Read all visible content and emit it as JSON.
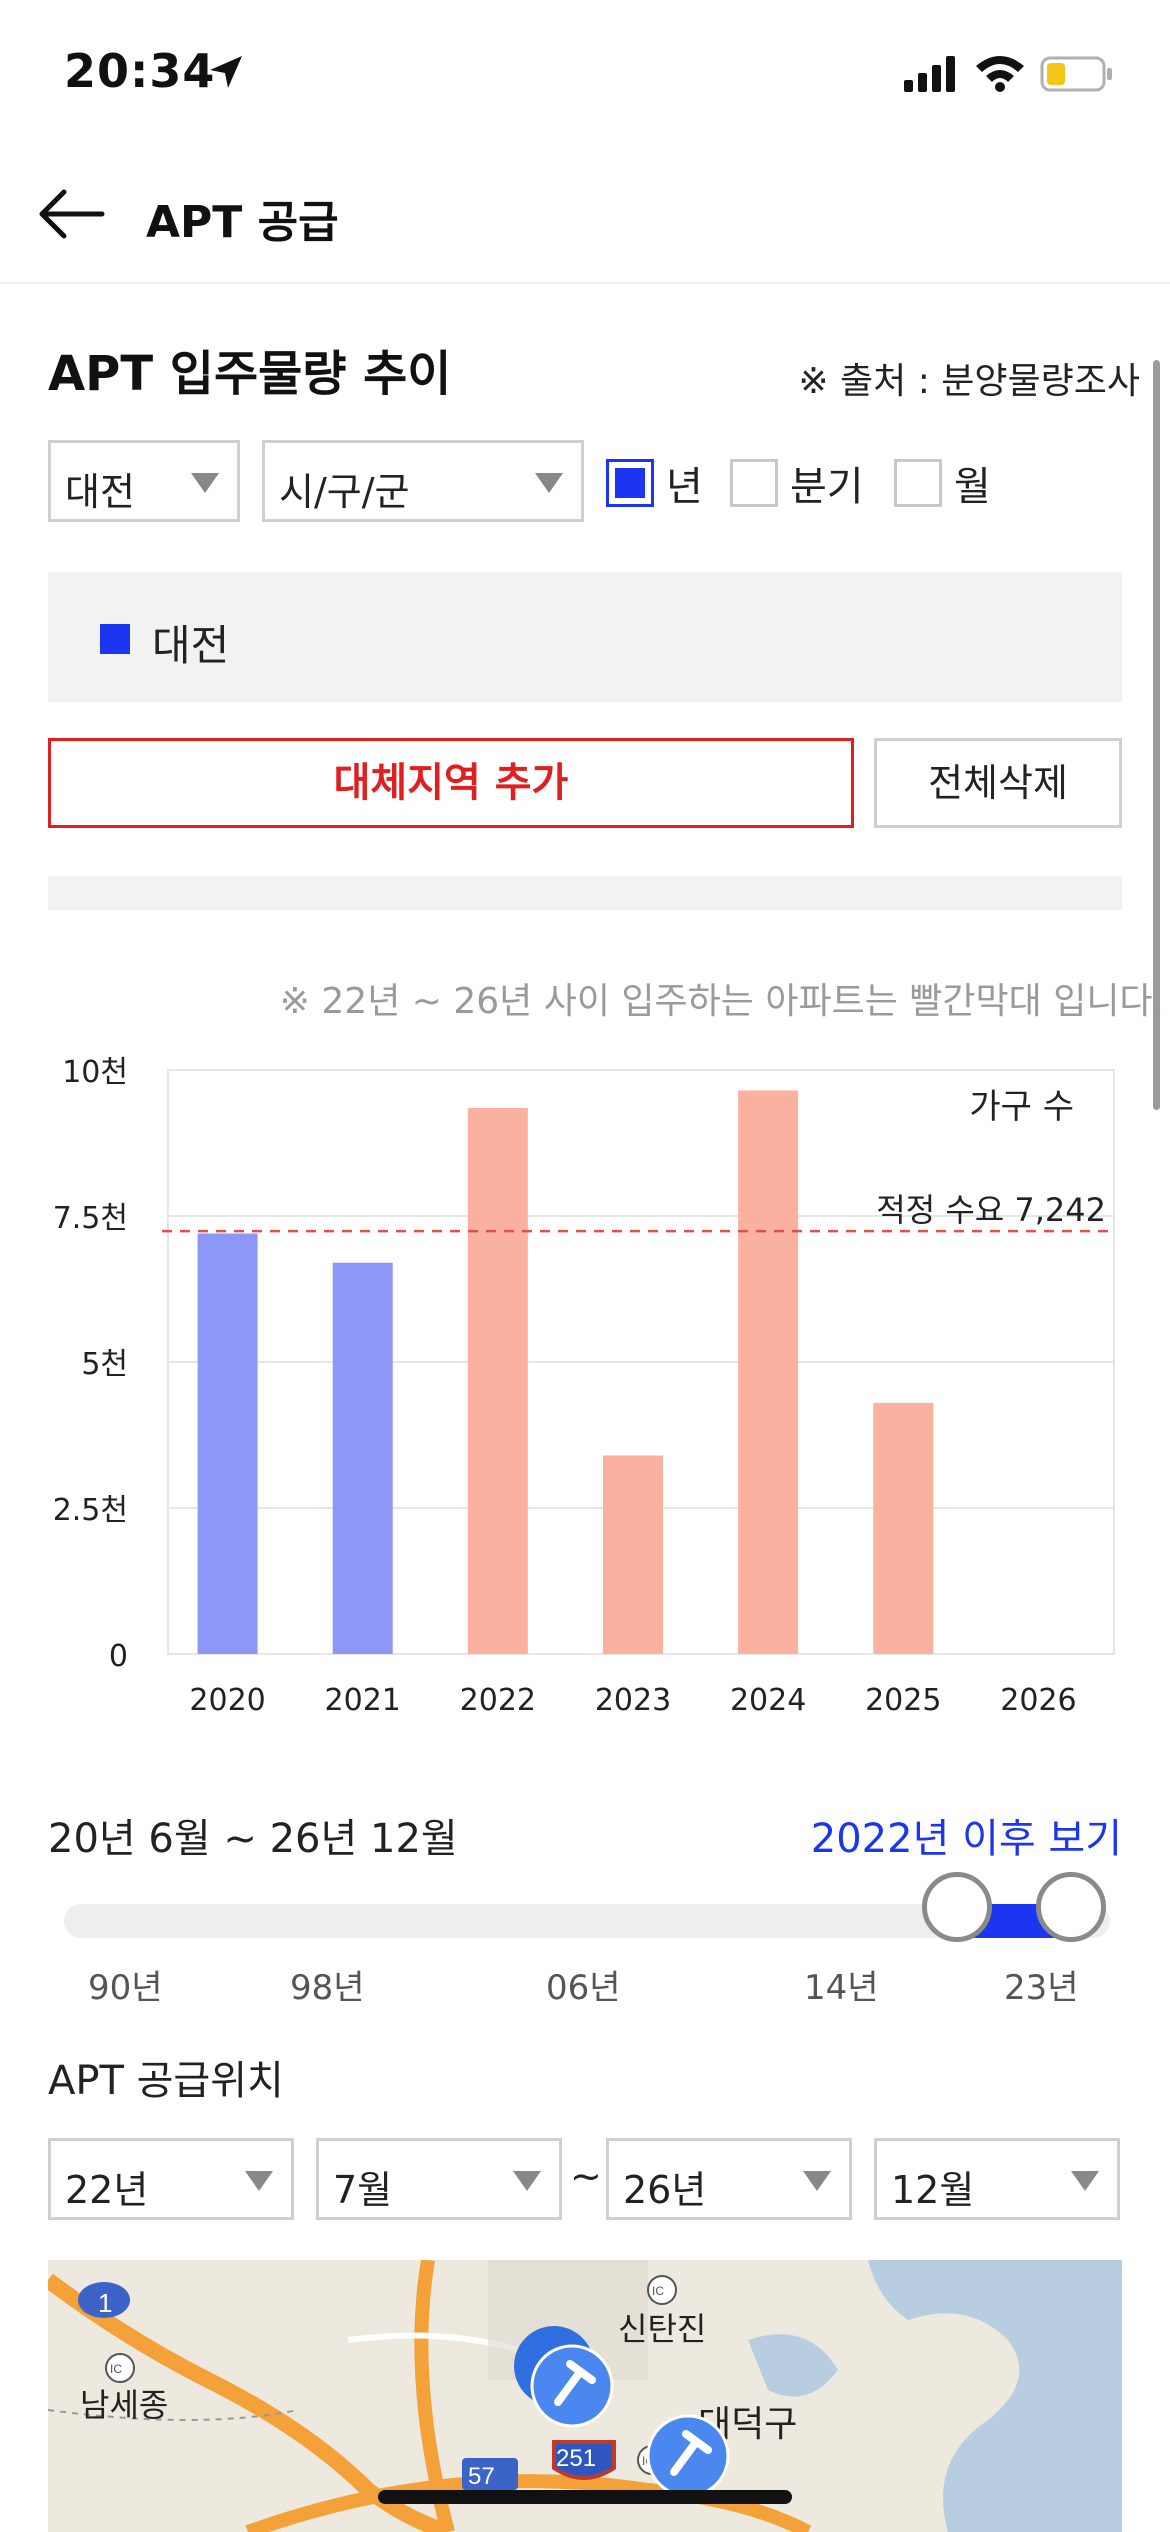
{
  "status": {
    "time": "20:34"
  },
  "header": {
    "title": "APT 공급"
  },
  "section": {
    "title": "APT 입주물량 추이",
    "source": "※ 출처 : 분양물량조사"
  },
  "filters": {
    "region": "대전",
    "district": "시/구/군",
    "period_options": [
      {
        "label": "년",
        "checked": true
      },
      {
        "label": "분기",
        "checked": false
      },
      {
        "label": "월",
        "checked": false
      }
    ]
  },
  "legend": {
    "items": [
      {
        "label": "대전",
        "color": "#1b35f0"
      }
    ]
  },
  "buttons": {
    "add_region": "대체지역 추가",
    "delete_all": "전체삭제"
  },
  "note": "※ 22년 ~ 26년 사이 입주하는 아파트는 빨간막대 입니다.",
  "chart_data": {
    "type": "bar",
    "categories": [
      "2020",
      "2021",
      "2022",
      "2023",
      "2024",
      "2025",
      "2026"
    ],
    "values": [
      7200,
      6700,
      9350,
      3400,
      9650,
      4300,
      0
    ],
    "colors": [
      "#8b98f5",
      "#8b98f5",
      "#fbb1a0",
      "#fbb1a0",
      "#fbb1a0",
      "#fbb1a0",
      "#fbb1a0"
    ],
    "ylim": [
      0,
      10000
    ],
    "ytick_labels": [
      "0",
      "2.5천",
      "5천",
      "7.5천",
      "10천"
    ],
    "ytick_values": [
      0,
      2500,
      5000,
      7500,
      10000
    ],
    "ylabel": "가구 수",
    "reference_line": {
      "value": 7242,
      "label": "적정 수요 7,242",
      "color": "#e05050"
    },
    "grid": true
  },
  "range": {
    "title": "20년 6월 ~ 26년 12월",
    "link": "2022년 이후 보기",
    "ticks": [
      "90년",
      "98년",
      "06년",
      "14년",
      "23년"
    ]
  },
  "location": {
    "title": "APT 공급위치",
    "start_year": "22년",
    "start_month": "7월",
    "separator": "~",
    "end_year": "26년",
    "end_month": "12월"
  },
  "map": {
    "labels": [
      "신탄진",
      "남세종",
      "대덕구",
      "1",
      "57",
      "251",
      "IC",
      "IC",
      "IC"
    ]
  }
}
